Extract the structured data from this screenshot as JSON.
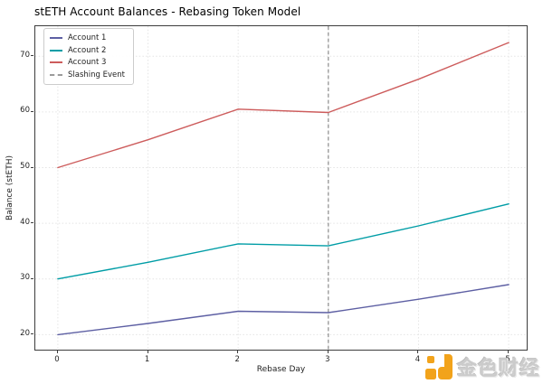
{
  "title": "stETH Account Balances - Rebasing Token Model",
  "chart_data": {
    "type": "line",
    "title": "stETH Account Balances - Rebasing Token Model",
    "xlabel": "Rebase Day",
    "ylabel": "Balance (stETH)",
    "x": [
      0,
      1,
      2,
      3,
      4,
      5
    ],
    "xtick_labels": [
      "0",
      "1",
      "2",
      "3",
      "4",
      "5"
    ],
    "ytick_values": [
      20,
      30,
      40,
      50,
      60,
      70
    ],
    "ytick_labels": [
      "20",
      "30",
      "40",
      "50",
      "60",
      "70"
    ],
    "xlim": [
      -0.25,
      5.2
    ],
    "ylim": [
      17.3,
      75.4
    ],
    "grid": true,
    "grid_color": "#e4e4e4",
    "legend_position": "upper left",
    "series": [
      {
        "name": "Account 1",
        "color": "#5d5fa3",
        "values": [
          20.0,
          22.0,
          24.2,
          23.96,
          26.35,
          28.99
        ]
      },
      {
        "name": "Account 2",
        "color": "#009da6",
        "values": [
          30.0,
          33.0,
          36.3,
          35.94,
          39.53,
          43.48
        ]
      },
      {
        "name": "Account 3",
        "color": "#cd5c5c",
        "values": [
          50.0,
          55.0,
          60.5,
          59.9,
          65.88,
          72.47
        ]
      }
    ],
    "annotations": {
      "slashing_event": {
        "label": "Slashing Event",
        "x": 3,
        "color": "#8c8c8c",
        "style": "dashed"
      }
    }
  },
  "watermark": {
    "text": "金色财经",
    "logo_color": "#f2a31b",
    "text_color": "#cbcbcb"
  }
}
